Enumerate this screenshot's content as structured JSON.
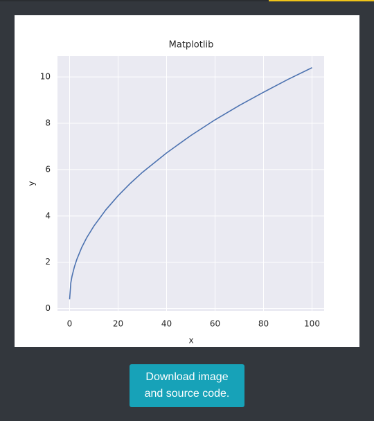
{
  "chart_data": {
    "type": "line",
    "title": "Matplotlib",
    "x_label": "x",
    "y_label": "y",
    "x": [
      0,
      0.5,
      1,
      2,
      3,
      5,
      7,
      10,
      15,
      20,
      25,
      30,
      40,
      50,
      60,
      70,
      80,
      90,
      100
    ],
    "series": [
      {
        "color": "#4c72b0",
        "values": [
          0.4,
          1.11,
          1.4,
          1.81,
          2.13,
          2.64,
          3.05,
          3.56,
          4.27,
          4.87,
          5.4,
          5.88,
          6.72,
          7.47,
          8.15,
          8.77,
          9.34,
          9.89,
          10.4
        ]
      }
    ],
    "xlim": [
      -5,
      105
    ],
    "ylim": [
      -0.1,
      10.9
    ],
    "xticks": [
      0,
      20,
      40,
      60,
      80,
      100
    ],
    "yticks": [
      0,
      2,
      4,
      6,
      8,
      10
    ],
    "grid": true
  },
  "button": {
    "label": "Download image and source code."
  }
}
